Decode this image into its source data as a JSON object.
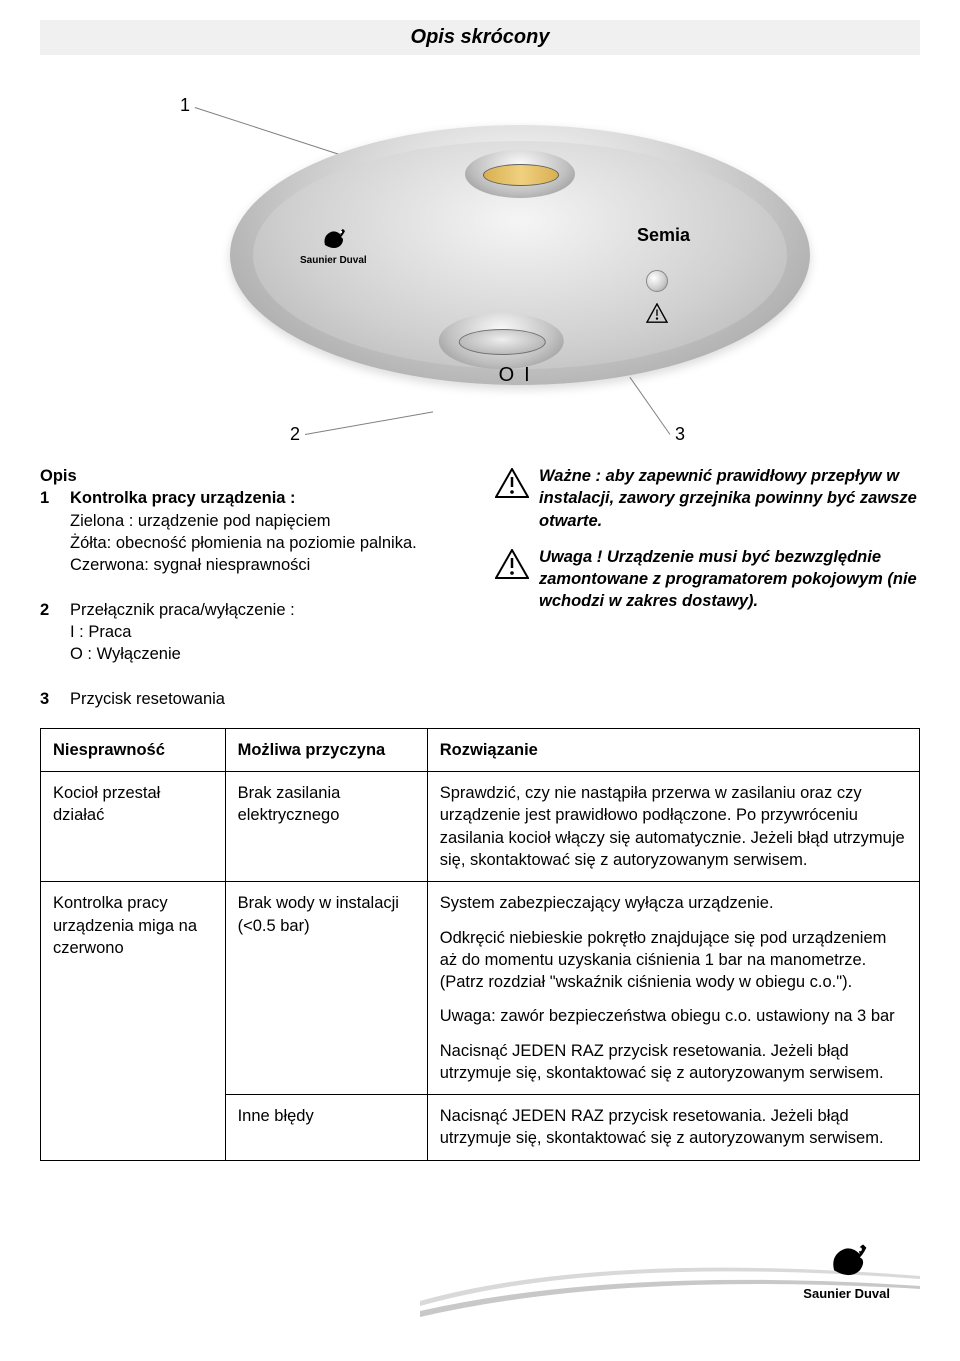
{
  "title": "Opis skrócony",
  "brand": "Saunier Duval",
  "product": "Semia",
  "labels": {
    "o": "O",
    "i": "I",
    "c1": "1",
    "c2": "2",
    "c3": "3"
  },
  "opis": {
    "heading": "Opis",
    "item1": {
      "num": "1",
      "title": "Kontrolka pracy urządzenia :",
      "line1": "Zielona : urządzenie pod napięciem",
      "line2": "Żółta: obecność płomienia na poziomie palnika.",
      "line3": "Czerwona: sygnał niesprawności"
    },
    "item2": {
      "num": "2",
      "title": "Przełącznik praca/wyłączenie :",
      "line1": "I : Praca",
      "line2": "O : Wyłączenie"
    },
    "item3": {
      "num": "3",
      "title": "Przycisk resetowania"
    }
  },
  "warn1": "Ważne : aby zapewnić prawidłowy przepływ w instalacji, zawory grzejnika powinny być zawsze otwarte.",
  "warn2": "Uwaga ! Urządzenie musi być bezwzględnie zamontowane z programatorem pokojowym (nie wchodzi w zakres dostawy).",
  "table": {
    "headers": {
      "a": "Niesprawność",
      "b": "Możliwa przyczyna",
      "c": "Rozwiązanie"
    },
    "rows": [
      {
        "a": "Kocioł przestał działać",
        "b": "Brak zasilania elektrycznego",
        "c": [
          "Sprawdzić, czy nie nastąpiła przerwa w zasilaniu oraz czy urządzenie jest prawidłowo podłączone. Po przywróceniu zasilania kocioł włączy się automatycznie. Jeżeli błąd utrzymuje się, skontaktować się z autoryzowanym serwisem."
        ]
      },
      {
        "a": "Kontrolka pracy urządzenia miga na czerwono",
        "b": "Brak wody w instalacji (<0.5 bar)",
        "c": [
          "System zabezpieczający wyłącza urządzenie.",
          "Odkręcić niebieskie pokrętło znajdujące się pod urządzeniem aż do momentu uzyskania ciśnienia 1 bar na manometrze. (Patrz rozdział \"wskaźnik ciśnienia wody w obiegu c.o.\").",
          "Uwaga: zawór bezpieczeństwa obiegu c.o. ustawiony na 3 bar",
          "Nacisnąć JEDEN RAZ przycisk resetowania. Jeżeli błąd utrzymuje się, skontaktować się z autoryzowanym serwisem."
        ]
      },
      {
        "a": "",
        "b": "Inne błędy",
        "c": [
          "Nacisnąć JEDEN RAZ przycisk resetowania. Jeżeli błąd utrzymuje się, skontaktować się z autoryzowanym serwisem."
        ]
      }
    ]
  },
  "colors": {
    "titlebar_bg": "#f0f0f0",
    "border": "#000000",
    "callout_line": "#808080"
  }
}
